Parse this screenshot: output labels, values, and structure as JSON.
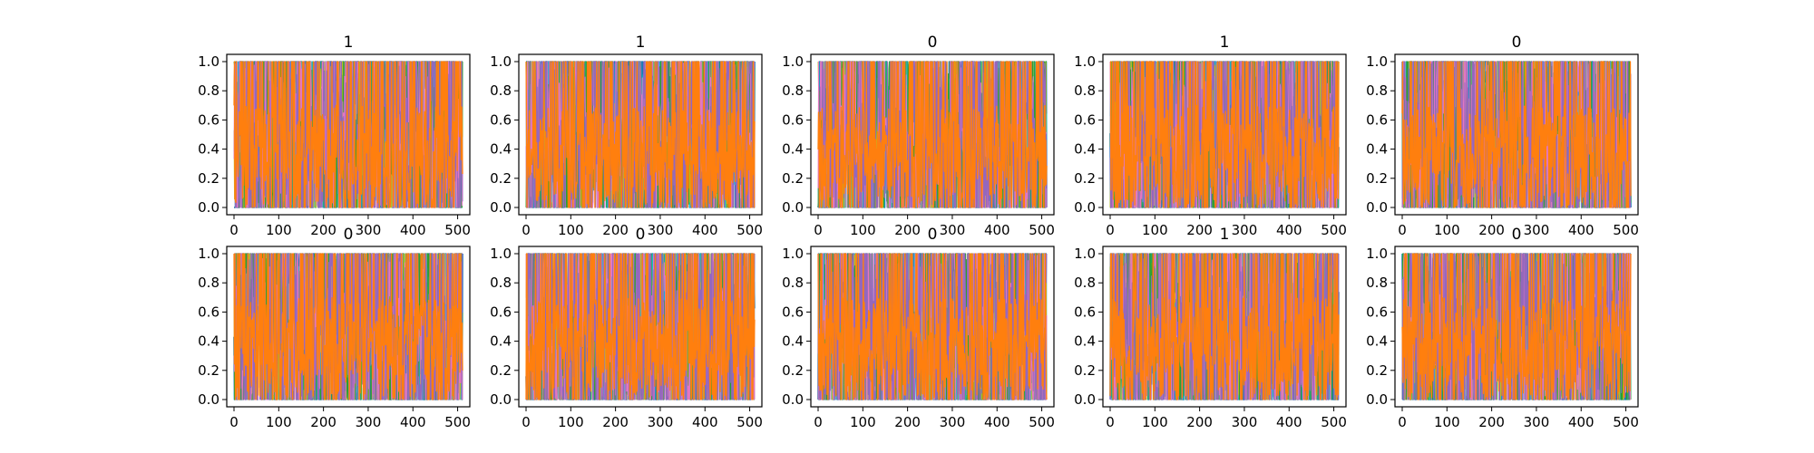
{
  "chart_data": [
    {
      "type": "line",
      "title": "1",
      "x_range": [
        0,
        511
      ],
      "ylim": [
        0.0,
        1.0
      ],
      "x_ticks": [
        0,
        100,
        200,
        300,
        400,
        500
      ],
      "y_ticks": [
        0.0,
        0.2,
        0.4,
        0.6,
        0.8,
        1.0
      ],
      "series_colors": [
        "#1f77b4",
        "#17becf",
        "#bcbd22",
        "#2ca02c",
        "#e377c2",
        "#9467bd",
        "#ff7f0e"
      ],
      "seed": 11,
      "grid": false
    },
    {
      "type": "line",
      "title": "1",
      "x_range": [
        0,
        511
      ],
      "ylim": [
        0.0,
        1.0
      ],
      "x_ticks": [
        0,
        100,
        200,
        300,
        400,
        500
      ],
      "y_ticks": [
        0.0,
        0.2,
        0.4,
        0.6,
        0.8,
        1.0
      ],
      "series_colors": [
        "#1f77b4",
        "#17becf",
        "#bcbd22",
        "#2ca02c",
        "#e377c2",
        "#9467bd",
        "#ff7f0e"
      ],
      "seed": 23,
      "grid": false
    },
    {
      "type": "line",
      "title": "0",
      "x_range": [
        0,
        511
      ],
      "ylim": [
        0.0,
        1.0
      ],
      "x_ticks": [
        0,
        100,
        200,
        300,
        400,
        500
      ],
      "y_ticks": [
        0.0,
        0.2,
        0.4,
        0.6,
        0.8,
        1.0
      ],
      "series_colors": [
        "#1f77b4",
        "#17becf",
        "#bcbd22",
        "#2ca02c",
        "#e377c2",
        "#9467bd",
        "#ff7f0e"
      ],
      "seed": 37,
      "grid": false
    },
    {
      "type": "line",
      "title": "1",
      "x_range": [
        0,
        511
      ],
      "ylim": [
        0.0,
        1.0
      ],
      "x_ticks": [
        0,
        100,
        200,
        300,
        400,
        500
      ],
      "y_ticks": [
        0.0,
        0.2,
        0.4,
        0.6,
        0.8,
        1.0
      ],
      "series_colors": [
        "#1f77b4",
        "#17becf",
        "#bcbd22",
        "#2ca02c",
        "#e377c2",
        "#9467bd",
        "#ff7f0e"
      ],
      "seed": 41,
      "grid": false
    },
    {
      "type": "line",
      "title": "0",
      "x_range": [
        0,
        511
      ],
      "ylim": [
        0.0,
        1.0
      ],
      "x_ticks": [
        0,
        100,
        200,
        300,
        400,
        500
      ],
      "y_ticks": [
        0.0,
        0.2,
        0.4,
        0.6,
        0.8,
        1.0
      ],
      "series_colors": [
        "#1f77b4",
        "#17becf",
        "#bcbd22",
        "#2ca02c",
        "#e377c2",
        "#9467bd",
        "#ff7f0e"
      ],
      "seed": 53,
      "grid": false
    },
    {
      "type": "line",
      "title": "0",
      "x_range": [
        0,
        511
      ],
      "ylim": [
        0.0,
        1.0
      ],
      "x_ticks": [
        0,
        100,
        200,
        300,
        400,
        500
      ],
      "y_ticks": [
        0.0,
        0.2,
        0.4,
        0.6,
        0.8,
        1.0
      ],
      "series_colors": [
        "#1f77b4",
        "#17becf",
        "#bcbd22",
        "#2ca02c",
        "#e377c2",
        "#9467bd",
        "#ff7f0e"
      ],
      "seed": 67,
      "grid": false
    },
    {
      "type": "line",
      "title": "0",
      "x_range": [
        0,
        511
      ],
      "ylim": [
        0.0,
        1.0
      ],
      "x_ticks": [
        0,
        100,
        200,
        300,
        400,
        500
      ],
      "y_ticks": [
        0.0,
        0.2,
        0.4,
        0.6,
        0.8,
        1.0
      ],
      "series_colors": [
        "#1f77b4",
        "#17becf",
        "#bcbd22",
        "#2ca02c",
        "#e377c2",
        "#9467bd",
        "#ff7f0e"
      ],
      "seed": 71,
      "grid": false
    },
    {
      "type": "line",
      "title": "0",
      "x_range": [
        0,
        511
      ],
      "ylim": [
        0.0,
        1.0
      ],
      "x_ticks": [
        0,
        100,
        200,
        300,
        400,
        500
      ],
      "y_ticks": [
        0.0,
        0.2,
        0.4,
        0.6,
        0.8,
        1.0
      ],
      "series_colors": [
        "#1f77b4",
        "#17becf",
        "#bcbd22",
        "#2ca02c",
        "#e377c2",
        "#9467bd",
        "#ff7f0e"
      ],
      "seed": 83,
      "grid": false
    },
    {
      "type": "line",
      "title": "1",
      "x_range": [
        0,
        511
      ],
      "ylim": [
        0.0,
        1.0
      ],
      "x_ticks": [
        0,
        100,
        200,
        300,
        400,
        500
      ],
      "y_ticks": [
        0.0,
        0.2,
        0.4,
        0.6,
        0.8,
        1.0
      ],
      "series_colors": [
        "#1f77b4",
        "#17becf",
        "#bcbd22",
        "#2ca02c",
        "#e377c2",
        "#9467bd",
        "#ff7f0e"
      ],
      "seed": 97,
      "grid": false
    },
    {
      "type": "line",
      "title": "0",
      "x_range": [
        0,
        511
      ],
      "ylim": [
        0.0,
        1.0
      ],
      "x_ticks": [
        0,
        100,
        200,
        300,
        400,
        500
      ],
      "y_ticks": [
        0.0,
        0.2,
        0.4,
        0.6,
        0.8,
        1.0
      ],
      "series_colors": [
        "#1f77b4",
        "#17becf",
        "#bcbd22",
        "#2ca02c",
        "#e377c2",
        "#9467bd",
        "#ff7f0e"
      ],
      "seed": 101,
      "grid": false
    }
  ]
}
